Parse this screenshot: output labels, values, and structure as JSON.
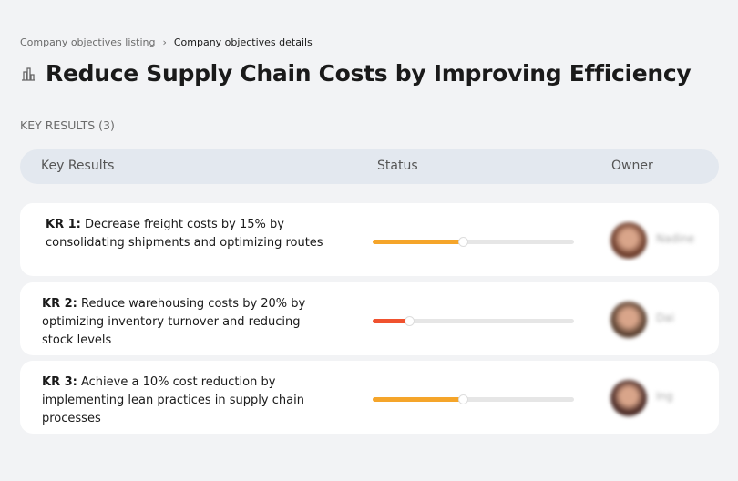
{
  "breadcrumb": {
    "parent": "Company objectives listing",
    "separator": "›",
    "current": "Company objectives details"
  },
  "title": "Reduce Supply Chain Costs by Improving Efficiency",
  "section_label": "KEY RESULTS (3)",
  "columns": {
    "key_results": "Key Results",
    "status": "Status",
    "owner": "Owner"
  },
  "key_results": [
    {
      "id": "KR 1:",
      "text": "Decrease freight costs by 15% by consolidating shipments and optimizing routes",
      "progress": 45,
      "color": "#f5a52a",
      "owner": "Nadine",
      "avatar_color": "#6b3b2a"
    },
    {
      "id": "KR 2:",
      "text": "Reduce warehousing costs by 20% by optimizing inventory turnover and reducing stock levels",
      "progress": 18,
      "color": "#f0522f",
      "owner": "Dai",
      "avatar_color": "#5a4030"
    },
    {
      "id": "KR 3:",
      "text": "Achieve a 10% cost reduction by implementing lean practices in supply chain processes",
      "progress": 45,
      "color": "#f5a52a",
      "owner": "Ing",
      "avatar_color": "#4a2a25"
    }
  ]
}
